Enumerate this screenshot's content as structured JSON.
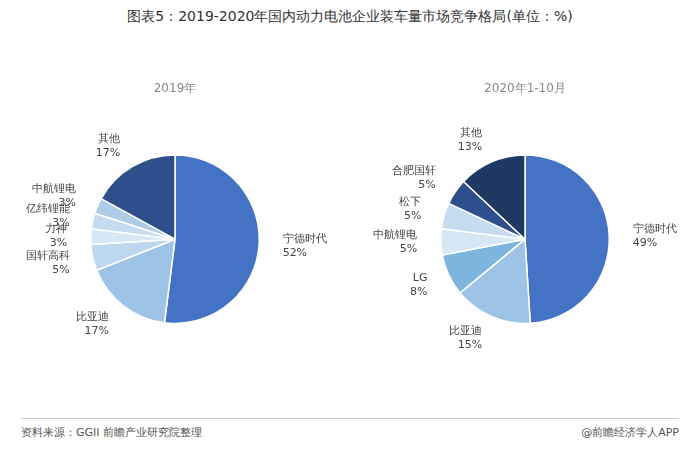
{
  "chart_data": [
    {
      "type": "pie",
      "title": "图表5：2019-2020年国内动力电池企业装车量市场竞争格局(单位：%)",
      "annotations": [
        "资料来源：GGII 前瞻产业研究院整理",
        "@前瞻经济学人APP"
      ],
      "subtitle": "2019年",
      "categories": [
        "宁德时代",
        "比亚迪",
        "国轩高科",
        "力神",
        "亿纬锂能",
        "中航锂电",
        "其他"
      ],
      "values": [
        52,
        17,
        5,
        3,
        3,
        3,
        17
      ],
      "value_labels": [
        "52%",
        "17%",
        "5%",
        "3%",
        "3%",
        "3%",
        "17%"
      ],
      "colors": [
        "#4472C4",
        "#9DC3E6",
        "#BDD7EE",
        "#D6E8F5",
        "#C5DCF0",
        "#AECCE8",
        "#2E4F8C"
      ],
      "data_labels": true
    },
    {
      "type": "pie",
      "subtitle": "2020年1-10月",
      "categories": [
        "宁德时代",
        "比亚迪",
        "LG",
        "中航锂电",
        "松下",
        "合肥国轩",
        "其他"
      ],
      "values": [
        49,
        15,
        8,
        5,
        5,
        5,
        13
      ],
      "value_labels": [
        "49%",
        "15%",
        "8%",
        "5%",
        "5%",
        "5%",
        "13%"
      ],
      "colors": [
        "#4472C4",
        "#9DC3E6",
        "#7EB5DE",
        "#D6E8F5",
        "#C5DCF0",
        "#2E4F8C",
        "#1F3864"
      ],
      "data_labels": true
    }
  ]
}
